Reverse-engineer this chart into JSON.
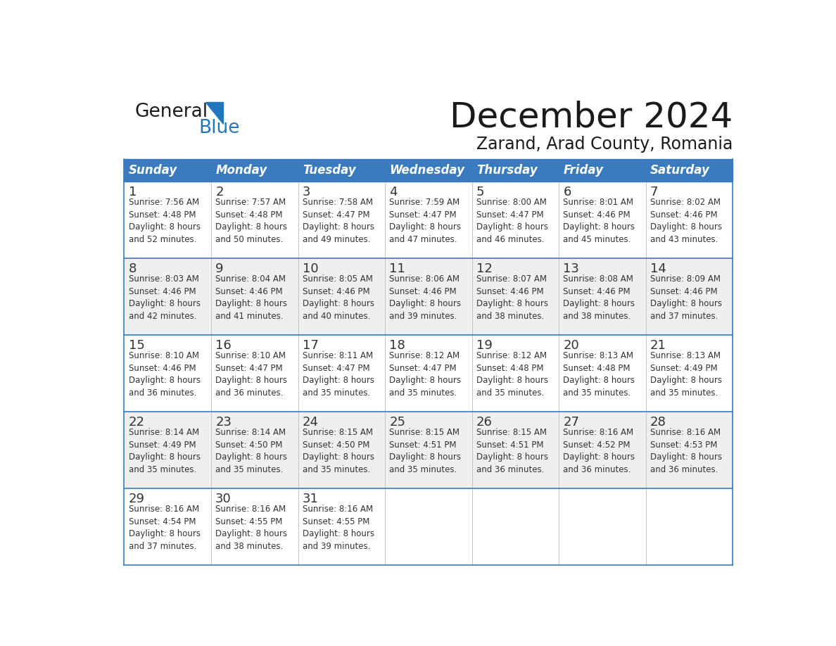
{
  "title": "December 2024",
  "subtitle": "Zarand, Arad County, Romania",
  "header_bg_color": "#3a7bbf",
  "header_text_color": "#ffffff",
  "row_bg_even": "#efefef",
  "row_bg_odd": "#ffffff",
  "day_names": [
    "Sunday",
    "Monday",
    "Tuesday",
    "Wednesday",
    "Thursday",
    "Friday",
    "Saturday"
  ],
  "cell_data": [
    [
      "1\nSunrise: 7:56 AM\nSunset: 4:48 PM\nDaylight: 8 hours\nand 52 minutes.",
      "2\nSunrise: 7:57 AM\nSunset: 4:48 PM\nDaylight: 8 hours\nand 50 minutes.",
      "3\nSunrise: 7:58 AM\nSunset: 4:47 PM\nDaylight: 8 hours\nand 49 minutes.",
      "4\nSunrise: 7:59 AM\nSunset: 4:47 PM\nDaylight: 8 hours\nand 47 minutes.",
      "5\nSunrise: 8:00 AM\nSunset: 4:47 PM\nDaylight: 8 hours\nand 46 minutes.",
      "6\nSunrise: 8:01 AM\nSunset: 4:46 PM\nDaylight: 8 hours\nand 45 minutes.",
      "7\nSunrise: 8:02 AM\nSunset: 4:46 PM\nDaylight: 8 hours\nand 43 minutes."
    ],
    [
      "8\nSunrise: 8:03 AM\nSunset: 4:46 PM\nDaylight: 8 hours\nand 42 minutes.",
      "9\nSunrise: 8:04 AM\nSunset: 4:46 PM\nDaylight: 8 hours\nand 41 minutes.",
      "10\nSunrise: 8:05 AM\nSunset: 4:46 PM\nDaylight: 8 hours\nand 40 minutes.",
      "11\nSunrise: 8:06 AM\nSunset: 4:46 PM\nDaylight: 8 hours\nand 39 minutes.",
      "12\nSunrise: 8:07 AM\nSunset: 4:46 PM\nDaylight: 8 hours\nand 38 minutes.",
      "13\nSunrise: 8:08 AM\nSunset: 4:46 PM\nDaylight: 8 hours\nand 38 minutes.",
      "14\nSunrise: 8:09 AM\nSunset: 4:46 PM\nDaylight: 8 hours\nand 37 minutes."
    ],
    [
      "15\nSunrise: 8:10 AM\nSunset: 4:46 PM\nDaylight: 8 hours\nand 36 minutes.",
      "16\nSunrise: 8:10 AM\nSunset: 4:47 PM\nDaylight: 8 hours\nand 36 minutes.",
      "17\nSunrise: 8:11 AM\nSunset: 4:47 PM\nDaylight: 8 hours\nand 35 minutes.",
      "18\nSunrise: 8:12 AM\nSunset: 4:47 PM\nDaylight: 8 hours\nand 35 minutes.",
      "19\nSunrise: 8:12 AM\nSunset: 4:48 PM\nDaylight: 8 hours\nand 35 minutes.",
      "20\nSunrise: 8:13 AM\nSunset: 4:48 PM\nDaylight: 8 hours\nand 35 minutes.",
      "21\nSunrise: 8:13 AM\nSunset: 4:49 PM\nDaylight: 8 hours\nand 35 minutes."
    ],
    [
      "22\nSunrise: 8:14 AM\nSunset: 4:49 PM\nDaylight: 8 hours\nand 35 minutes.",
      "23\nSunrise: 8:14 AM\nSunset: 4:50 PM\nDaylight: 8 hours\nand 35 minutes.",
      "24\nSunrise: 8:15 AM\nSunset: 4:50 PM\nDaylight: 8 hours\nand 35 minutes.",
      "25\nSunrise: 8:15 AM\nSunset: 4:51 PM\nDaylight: 8 hours\nand 35 minutes.",
      "26\nSunrise: 8:15 AM\nSunset: 4:51 PM\nDaylight: 8 hours\nand 36 minutes.",
      "27\nSunrise: 8:16 AM\nSunset: 4:52 PM\nDaylight: 8 hours\nand 36 minutes.",
      "28\nSunrise: 8:16 AM\nSunset: 4:53 PM\nDaylight: 8 hours\nand 36 minutes."
    ],
    [
      "29\nSunrise: 8:16 AM\nSunset: 4:54 PM\nDaylight: 8 hours\nand 37 minutes.",
      "30\nSunrise: 8:16 AM\nSunset: 4:55 PM\nDaylight: 8 hours\nand 38 minutes.",
      "31\nSunrise: 8:16 AM\nSunset: 4:55 PM\nDaylight: 8 hours\nand 39 minutes.",
      "",
      "",
      "",
      ""
    ]
  ],
  "logo_text1": "General",
  "logo_text2": "Blue",
  "logo_color1": "#1a1a1a",
  "logo_color2": "#2276bb",
  "logo_triangle_color": "#2276bb",
  "border_color": "#3a7bbf",
  "text_color": "#333333",
  "title_fontsize": 36,
  "subtitle_fontsize": 17,
  "header_fontsize": 12,
  "day_num_fontsize": 13,
  "cell_text_fontsize": 8.5
}
